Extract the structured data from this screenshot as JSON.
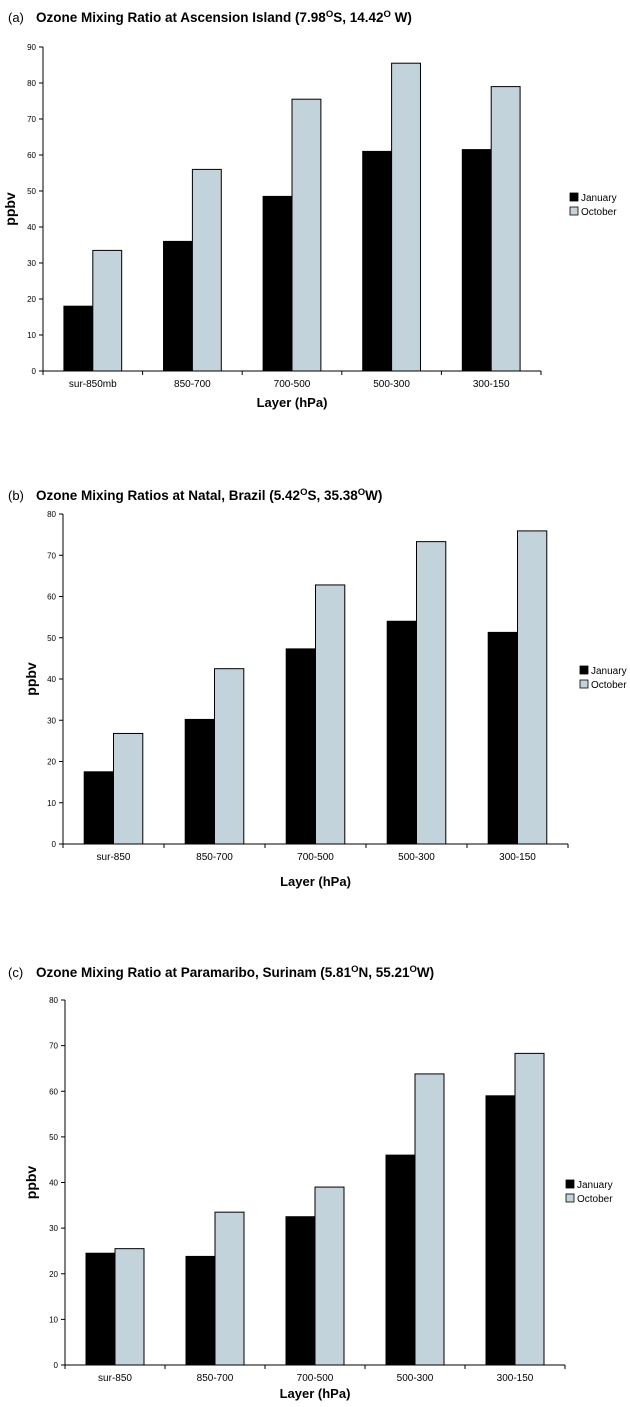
{
  "chart_data": [
    {
      "type": "bar",
      "panel_letter": "(a)",
      "title": "Ozone Mixing Ratio at Ascension Island (7.98ᴼS, 14.42ᴼ W)",
      "title_parts": [
        {
          "text": "Ozone Mixing Ratio at Ascension Island (7.98"
        },
        {
          "text": "O",
          "sup": true
        },
        {
          "text": "S, 14.42"
        },
        {
          "text": "O",
          "sup": true
        },
        {
          "text": " W)"
        }
      ],
      "xlabel": "Layer (hPa)",
      "ylabel": "ppbv",
      "ylim": [
        0,
        90
      ],
      "yticks": [
        0,
        10,
        20,
        30,
        40,
        50,
        60,
        70,
        80,
        90
      ],
      "categories": [
        "sur-850mb",
        "850-700",
        "700-500",
        "500-300",
        "300-150"
      ],
      "series": [
        {
          "name": "January",
          "color": "#000000",
          "values": [
            18,
            36,
            48.5,
            61,
            61.5
          ]
        },
        {
          "name": "October",
          "color": "#c3d3dc",
          "values": [
            33.5,
            56,
            75.5,
            85.5,
            79
          ]
        }
      ],
      "legend_position": "right"
    },
    {
      "type": "bar",
      "panel_letter": "(b)",
      "title": "Ozone Mixing Ratios at Natal, Brazil (5.42ᴼS, 35.38ᴼW)",
      "title_parts": [
        {
          "text": "Ozone Mixing Ratios at Natal, Brazil (5.42"
        },
        {
          "text": "O",
          "sup": true
        },
        {
          "text": "S, 35.38"
        },
        {
          "text": "O",
          "sup": true
        },
        {
          "text": "W)"
        }
      ],
      "xlabel": "Layer (hPa)",
      "ylabel": "ppbv",
      "ylim": [
        0,
        80
      ],
      "yticks": [
        0,
        10,
        20,
        30,
        40,
        50,
        60,
        70,
        80
      ],
      "categories": [
        "sur-850",
        "850-700",
        "700-500",
        "500-300",
        "300-150"
      ],
      "series": [
        {
          "name": "January",
          "color": "#000000",
          "values": [
            17.5,
            30.2,
            47.3,
            54,
            51.3
          ]
        },
        {
          "name": "October",
          "color": "#c3d3dc",
          "values": [
            26.8,
            42.5,
            62.8,
            73.3,
            75.9
          ]
        }
      ],
      "legend_position": "right"
    },
    {
      "type": "bar",
      "panel_letter": "(c)",
      "title": "Ozone Mixing Ratio at Paramaribo, Surinam (5.81ᴼN, 55.21ᴼW)",
      "title_parts": [
        {
          "text": "Ozone Mixing Ratio at Paramaribo, Surinam (5.81"
        },
        {
          "text": "O",
          "sup": true
        },
        {
          "text": "N, 55.21"
        },
        {
          "text": "O",
          "sup": true
        },
        {
          "text": "W)"
        }
      ],
      "xlabel": "Layer (hPa)",
      "ylabel": "ppbv",
      "ylim": [
        0,
        80
      ],
      "yticks": [
        0,
        10,
        20,
        30,
        40,
        50,
        60,
        70,
        80
      ],
      "categories": [
        "sur-850",
        "850-700",
        "700-500",
        "500-300",
        "300-150"
      ],
      "series": [
        {
          "name": "January",
          "color": "#000000",
          "values": [
            24.5,
            23.8,
            32.5,
            46,
            59
          ]
        },
        {
          "name": "October",
          "color": "#c3d3dc",
          "values": [
            25.5,
            33.5,
            39,
            63.8,
            68.3
          ]
        }
      ],
      "legend_position": "right"
    }
  ]
}
